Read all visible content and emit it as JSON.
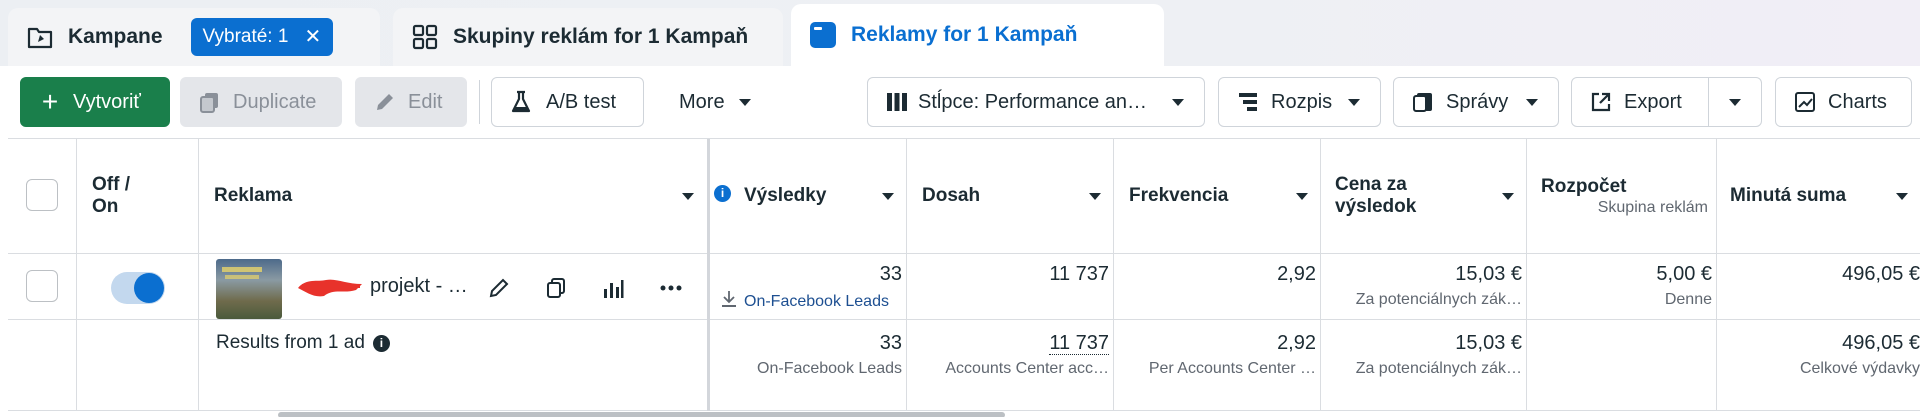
{
  "tabs": [
    {
      "label": "Kampane",
      "selected_badge": "Vybraté: 1"
    },
    {
      "label": "Skupiny reklám for 1 Kampaň"
    },
    {
      "label": "Reklamy for 1 Kampaň"
    }
  ],
  "toolbar": {
    "create": "Vytvoriť",
    "duplicate": "Duplicate",
    "edit": "Edit",
    "ab_test": "A/B test",
    "more": "More",
    "columns": "Stĺpce: Performance an…",
    "breakdown": "Rozpis",
    "reports": "Správy",
    "export": "Export",
    "charts": "Charts"
  },
  "table": {
    "headers": {
      "toggle": "Off / On",
      "ad": "Reklama",
      "results": "Výsledky",
      "reach": "Dosah",
      "frequency": "Frekvencia",
      "cost": "Cena za výsledok",
      "budget": "Rozpočet",
      "budget_sub": "Skupina reklám",
      "spent": "Minutá suma"
    },
    "row": {
      "ad_name": "projekt - …",
      "results": "33",
      "results_type": "On-Facebook Leads",
      "reach": "11 737",
      "frequency": "2,92",
      "cost": "15,03 €",
      "cost_sub": "Za potenciálnych zák…",
      "budget": "5,00 €",
      "budget_sub": "Denne",
      "spent": "496,05 €"
    },
    "summary": {
      "label": "Results from 1 ad",
      "results": "33",
      "results_sub": "On-Facebook Leads",
      "reach": "11 737",
      "reach_sub": "Accounts Center acc…",
      "frequency": "2,92",
      "frequency_sub": "Per Accounts Center …",
      "cost": "15,03 €",
      "cost_sub": "Za potenciálnych zák…",
      "spent": "496,05 €",
      "spent_sub": "Celkové výdavky"
    }
  },
  "colors": {
    "accent": "#0b6fd0",
    "create": "#1a7f4b"
  }
}
